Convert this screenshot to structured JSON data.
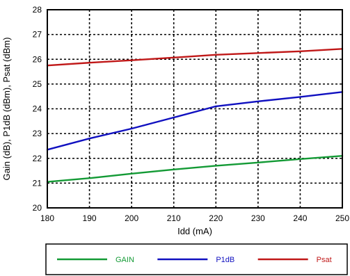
{
  "chart_data": {
    "type": "line",
    "xlabel": "Idd (mA)",
    "ylabel": "Gain (dB), P1dB (dBm), Psat (dBm)",
    "xlim": [
      180,
      250
    ],
    "ylim": [
      20,
      28
    ],
    "x_ticks": [
      180,
      190,
      200,
      210,
      220,
      230,
      240,
      250
    ],
    "y_ticks": [
      20,
      21,
      22,
      23,
      24,
      25,
      26,
      27,
      28
    ],
    "grid": true,
    "legend_position": "bottom",
    "series": [
      {
        "name": "GAIN",
        "color": "#139a35",
        "x": [
          180,
          190,
          200,
          210,
          220,
          230,
          240,
          250
        ],
        "y": [
          21.05,
          21.2,
          21.38,
          21.55,
          21.7,
          21.83,
          21.97,
          22.1
        ]
      },
      {
        "name": "P1dB",
        "color": "#1010c0",
        "x": [
          180,
          190,
          200,
          210,
          220,
          230,
          240,
          250
        ],
        "y": [
          22.35,
          22.8,
          23.2,
          23.65,
          24.1,
          24.3,
          24.48,
          24.68
        ]
      },
      {
        "name": "Psat",
        "color": "#c01818",
        "x": [
          180,
          190,
          200,
          210,
          220,
          230,
          240,
          250
        ],
        "y": [
          25.75,
          25.86,
          25.96,
          26.07,
          26.18,
          26.25,
          26.32,
          26.42
        ]
      }
    ]
  }
}
